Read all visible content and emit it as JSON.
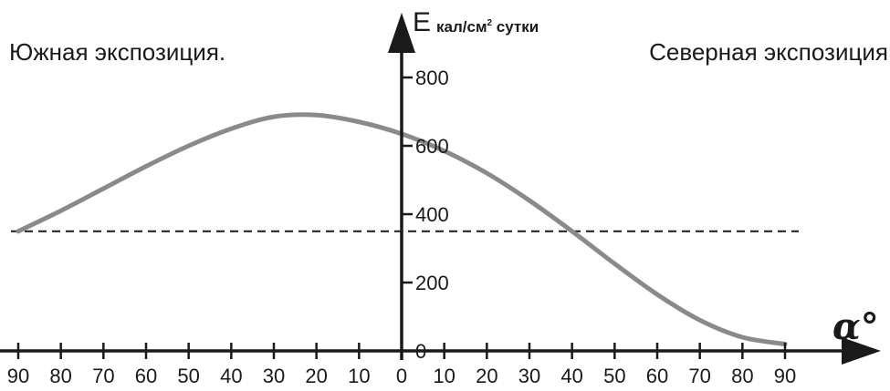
{
  "chart_data": {
    "type": "line",
    "labels": {
      "left_region": "Южная экспозиция.",
      "right_region": "Северная экспозиция",
      "y_axis_prefix": "E",
      "y_axis_unit_main": "кал/см",
      "y_axis_unit_sup": "2",
      "y_axis_unit_tail": " сутки",
      "x_axis_symbol": "α°"
    },
    "x_ticks": [
      -90,
      -80,
      -70,
      -60,
      -50,
      -40,
      -30,
      -20,
      -10,
      0,
      10,
      20,
      30,
      40,
      50,
      60,
      70,
      80,
      90
    ],
    "x_tick_labels": [
      "90",
      "80",
      "70",
      "60",
      "50",
      "40",
      "30",
      "20",
      "10",
      "0",
      "10",
      "20",
      "30",
      "40",
      "50",
      "60",
      "70",
      "80",
      "90"
    ],
    "y_ticks": [
      0,
      200,
      400,
      600,
      800
    ],
    "y_tick_labels": [
      "0",
      "200",
      "400",
      "600",
      "800"
    ],
    "xlim": [
      -90,
      90
    ],
    "ylim": [
      0,
      800
    ],
    "series": [
      {
        "color": "#8a8a8a",
        "x": [
          -90,
          -80,
          -70,
          -60,
          -50,
          -40,
          -30,
          -20,
          -10,
          0,
          10,
          20,
          30,
          40,
          50,
          60,
          70,
          80,
          90
        ],
        "y": [
          350,
          410,
          475,
          540,
          600,
          650,
          685,
          690,
          670,
          635,
          585,
          520,
          440,
          350,
          255,
          165,
          90,
          40,
          20
        ]
      },
      {
        "color": "#1a1a1a",
        "dashed": true,
        "x": [
          -90,
          90
        ],
        "y": [
          350,
          350
        ]
      }
    ]
  }
}
